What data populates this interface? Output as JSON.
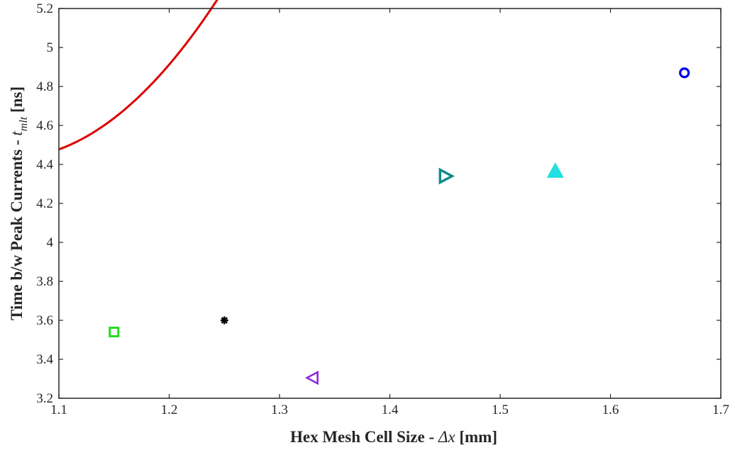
{
  "chart_data": {
    "type": "scatter",
    "xlabel_prefix": "Hex Mesh Cell Size - ",
    "xlabel_symbol": "Δx",
    "xlabel_unit": " [mm]",
    "ylabel_prefix": "Time b/w Peak Currents - ",
    "ylabel_symbol": "t",
    "ylabel_subscript": "mlt",
    "ylabel_unit": " [ns]",
    "xlim": [
      1.1,
      1.7
    ],
    "ylim": [
      3.2,
      5.2
    ],
    "x_ticks": [
      "1.1",
      "1.2",
      "1.3",
      "1.4",
      "1.5",
      "1.6",
      "1.7"
    ],
    "y_ticks": [
      "3.2",
      "3.4",
      "3.6",
      "3.8",
      "4",
      "4.2",
      "4.4",
      "4.6",
      "4.8",
      "5",
      "5.2"
    ],
    "points": [
      {
        "x": 1.15,
        "y": 3.54,
        "marker": "square",
        "color": "#22dd22"
      },
      {
        "x": 1.25,
        "y": 3.6,
        "marker": "asterisk",
        "color": "#000000"
      },
      {
        "x": 1.33,
        "y": 3.305,
        "marker": "triangle-left",
        "color": "#8a2be2"
      },
      {
        "x": 1.45,
        "y": 4.34,
        "marker": "triangle-right",
        "color": "#0f8a8a"
      },
      {
        "x": 1.55,
        "y": 4.365,
        "marker": "triangle-up",
        "color": "#22e0e0"
      },
      {
        "x": 1.667,
        "y": 4.87,
        "marker": "circle",
        "color": "#0000ee"
      }
    ],
    "fit_curve": {
      "type": "quadratic",
      "coefficients": [
        29.93,
        -48.34,
        22.91
      ],
      "color": "#dd0000"
    },
    "grid": false,
    "box": true
  }
}
